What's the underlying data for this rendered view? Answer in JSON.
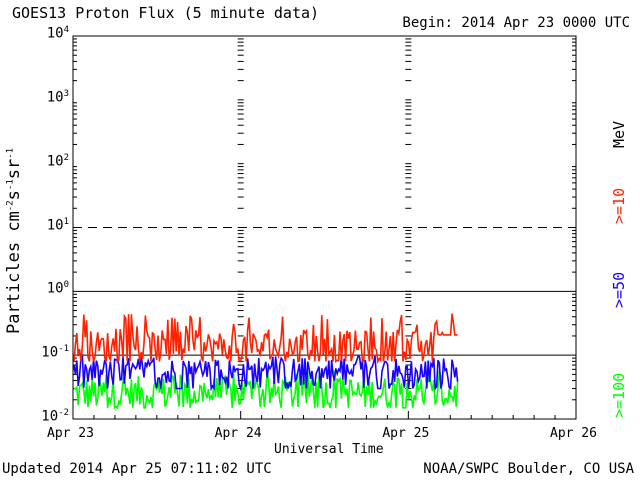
{
  "header": {
    "title": "GOES13 Proton Flux (5 minute data)",
    "begin": "Begin: 2014 Apr 23 0000 UTC"
  },
  "footer": {
    "updated": "Updated 2014 Apr 25 07:11:02 UTC",
    "credit": "NOAA/SWPC Boulder, CO USA"
  },
  "colors": {
    "gt10": "#ff2200",
    "gt50": "#1a00ff",
    "gt100": "#00ff00"
  },
  "chart_data": {
    "type": "line",
    "title": "GOES13 Proton Flux (5 minute data)",
    "xlabel": "Universal Time",
    "ylabel": "Particles cm-2s-1sr-1",
    "y_scale": "log",
    "ylim": [
      0.01,
      10000
    ],
    "y_ticks": [
      {
        "value": 10000,
        "base": "10",
        "exp": "4"
      },
      {
        "value": 1000,
        "base": "10",
        "exp": "3"
      },
      {
        "value": 100,
        "base": "10",
        "exp": "2"
      },
      {
        "value": 10,
        "base": "10",
        "exp": "1"
      },
      {
        "value": 1,
        "base": "10",
        "exp": "0"
      },
      {
        "value": 0.1,
        "base": "10",
        "exp": "-1"
      },
      {
        "value": 0.01,
        "base": "10",
        "exp": "-2"
      }
    ],
    "x_ticks": [
      "Apr 23",
      "Apr 24",
      "Apr 25",
      "Apr 26"
    ],
    "xlim_days": [
      0,
      3
    ],
    "data_end_day": 2.3,
    "threshold_lines": [
      {
        "value": 10,
        "style": "dashed"
      },
      {
        "value": 1,
        "style": "solid"
      },
      {
        "value": 0.1,
        "style": "solid"
      }
    ],
    "units_label": "MeV",
    "series": [
      {
        "name": ">=10",
        "color": "#ff2200",
        "min": 0.08,
        "max": 0.45,
        "typical": 0.13
      },
      {
        "name": ">=50",
        "color": "#1a00ff",
        "min": 0.03,
        "max": 0.1,
        "typical": 0.05
      },
      {
        "name": ">=100",
        "color": "#00ff00",
        "min": 0.015,
        "max": 0.06,
        "typical": 0.025
      }
    ]
  }
}
